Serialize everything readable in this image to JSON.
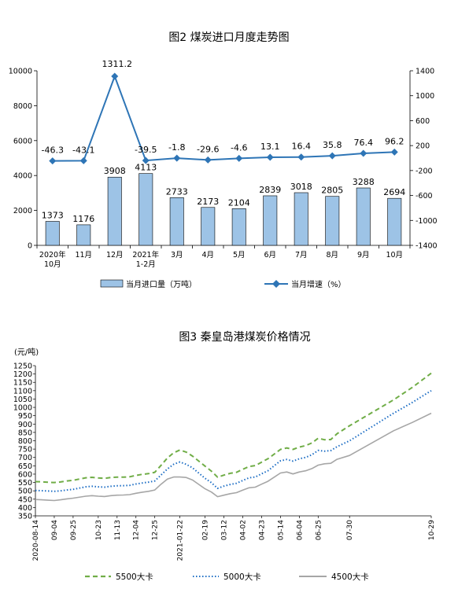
{
  "chart_data": [
    {
      "type": "bar+line",
      "title": "图2  煤炭进口月度走势图",
      "categories": [
        "2020年\n10月",
        "11月",
        "12月",
        "2021年\n1-2月",
        "3月",
        "4月",
        "5月",
        "6月",
        "7月",
        "8月",
        "9月",
        "10月"
      ],
      "series": [
        {
          "name": "当月进口量（万吨）",
          "type": "bar",
          "axis": "left",
          "color": "#9dc3e6",
          "values": [
            1373,
            1176,
            3908,
            4113,
            2733,
            2173,
            2104,
            2839,
            3018,
            2805,
            3288,
            2694
          ],
          "labels": [
            "1373",
            "1176",
            "3908",
            "4113",
            "2733",
            "2173",
            "2104",
            "2839",
            "3018",
            "2805",
            "3288",
            "2694"
          ]
        },
        {
          "name": "当月增速（%）",
          "type": "line",
          "axis": "right",
          "color": "#2e75b6",
          "values": [
            -46.3,
            -43.1,
            1311.2,
            -39.5,
            -1.8,
            -29.6,
            -4.6,
            13.1,
            16.4,
            35.8,
            76.4,
            96.2
          ],
          "labels": [
            "-46.3",
            "-43.1",
            "1311.2",
            "-39.5",
            "-1.8",
            "-29.6",
            "-4.6",
            "13.1",
            "16.4",
            "35.8",
            "76.4",
            "96.2"
          ]
        }
      ],
      "y_left": {
        "lim": [
          0,
          10000
        ],
        "ticks": [
          "0",
          "2000",
          "4000",
          "6000",
          "8000",
          "10000"
        ]
      },
      "y_right": {
        "lim": [
          -1400,
          1400
        ],
        "ticks": [
          "1400",
          "1000",
          "600",
          "200",
          "-200",
          "-600",
          "-1000",
          "-1400"
        ]
      },
      "legend_placement": "bottom",
      "grid": false
    },
    {
      "type": "line",
      "title": "图3    秦皇岛港煤炭价格情况",
      "ylabel": "(元/吨)",
      "ylim": [
        350,
        1250
      ],
      "y_ticks": [
        "350",
        "400",
        "450",
        "500",
        "550",
        "600",
        "650",
        "700",
        "750",
        "800",
        "850",
        "900",
        "950",
        "1000",
        "1050",
        "1100",
        "1150",
        "1200",
        "1250"
      ],
      "x_ticks": [
        "2020-08-14",
        "09-04",
        "09-25",
        "10-23",
        "11-13",
        "12-04",
        "12-25",
        "2021-01-22",
        "02-19",
        "03-12",
        "04-02",
        "04-23",
        "05-14",
        "06-04",
        "06-25",
        "07-30",
        "10-29"
      ],
      "x": [
        "2020-08-14",
        "2020-08-21",
        "2020-08-28",
        "2020-09-04",
        "2020-09-11",
        "2020-09-18",
        "2020-09-25",
        "2020-10-09",
        "2020-10-16",
        "2020-10-23",
        "2020-10-30",
        "2020-11-06",
        "2020-11-13",
        "2020-11-20",
        "2020-11-27",
        "2020-12-04",
        "2020-12-11",
        "2020-12-18",
        "2020-12-25",
        "2021-01-01",
        "2021-01-08",
        "2021-01-15",
        "2021-01-22",
        "2021-01-29",
        "2021-02-05",
        "2021-02-19",
        "2021-02-26",
        "2021-03-05",
        "2021-03-12",
        "2021-03-19",
        "2021-03-26",
        "2021-04-02",
        "2021-04-09",
        "2021-04-16",
        "2021-04-23",
        "2021-04-30",
        "2021-05-07",
        "2021-05-14",
        "2021-05-21",
        "2021-05-28",
        "2021-06-04",
        "2021-06-11",
        "2021-06-18",
        "2021-06-25",
        "2021-07-02",
        "2021-07-09",
        "2021-07-16",
        "2021-07-30",
        "2021-09-17",
        "2021-10-08",
        "2021-10-29"
      ],
      "series": [
        {
          "name": "5500大卡",
          "color": "#70ad47",
          "dash": "dashed",
          "values": [
            555,
            554,
            551,
            550,
            553,
            559,
            563,
            578,
            581,
            577,
            575,
            580,
            582,
            582,
            584,
            592,
            599,
            603,
            611,
            653,
            697,
            728,
            745,
            732,
            708,
            648,
            618,
            582,
            594,
            605,
            611,
            629,
            646,
            651,
            672,
            692,
            720,
            748,
            757,
            748,
            762,
            771,
            787,
            815,
            806,
            807,
            842,
            890,
            1045,
            1120,
            1205
          ]
        },
        {
          "name": "5000大卡",
          "color": "#1f6fc5",
          "dash": "dotted",
          "values": [
            502,
            501,
            499,
            497,
            500,
            505,
            509,
            524,
            527,
            524,
            522,
            527,
            530,
            531,
            533,
            541,
            547,
            552,
            559,
            595,
            631,
            659,
            673,
            659,
            638,
            575,
            549,
            515,
            528,
            538,
            545,
            562,
            578,
            583,
            602,
            620,
            650,
            680,
            688,
            678,
            692,
            700,
            716,
            742,
            738,
            741,
            764,
            800,
            965,
            1030,
            1100
          ]
        },
        {
          "name": "4500大卡",
          "color": "#a6a6a6",
          "dash": "solid",
          "values": [
            448,
            446,
            444,
            442,
            446,
            452,
            456,
            468,
            471,
            468,
            466,
            471,
            474,
            475,
            477,
            485,
            492,
            497,
            505,
            540,
            570,
            583,
            583,
            580,
            565,
            512,
            493,
            465,
            474,
            483,
            489,
            504,
            518,
            522,
            540,
            557,
            582,
            607,
            613,
            601,
            613,
            620,
            633,
            654,
            662,
            665,
            689,
            712,
            860,
            910,
            965
          ]
        }
      ],
      "legend_placement": "bottom",
      "grid": false
    }
  ]
}
